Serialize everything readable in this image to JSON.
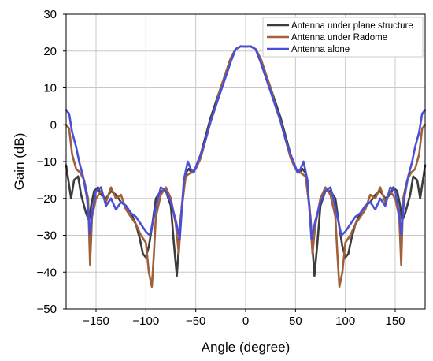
{
  "chart_data": {
    "type": "line",
    "title": "",
    "xlabel": "Angle (degree)",
    "ylabel": "Gain (dB)",
    "xlim": [
      -180,
      180
    ],
    "ylim": [
      -50,
      30
    ],
    "xticks": [
      -150,
      -100,
      -50,
      0,
      50,
      100,
      150
    ],
    "yticks": [
      30,
      20,
      10,
      0,
      -10,
      -20,
      -30,
      -40,
      -50
    ],
    "grid": true,
    "legend_position": "top-right",
    "series": [
      {
        "name": "Antenna under plane structure",
        "color": "#3c3c3c",
        "x": [
          -180,
          -175,
          -172,
          -168,
          -165,
          -160,
          -157,
          -155,
          -152,
          -148,
          -145,
          -140,
          -135,
          -130,
          -125,
          -120,
          -115,
          -110,
          -106,
          -103,
          -100,
          -97,
          -94,
          -90,
          -85,
          -80,
          -75,
          -72,
          -69,
          -65,
          -60,
          -57,
          -54,
          -50,
          -45,
          -40,
          -35,
          -30,
          -25,
          -20,
          -15,
          -10,
          -5,
          0,
          5,
          10,
          15,
          20,
          25,
          30,
          35,
          40,
          45,
          50,
          54,
          57,
          60,
          65,
          69,
          72,
          75,
          80,
          85,
          90,
          94,
          97,
          100,
          103,
          106,
          110,
          115,
          120,
          125,
          130,
          135,
          140,
          145,
          148,
          152,
          155,
          157,
          160,
          165,
          168,
          172,
          175,
          180
        ],
        "y": [
          -11,
          -20,
          -15,
          -14,
          -19,
          -24,
          -26,
          -22,
          -18,
          -17,
          -19,
          -20,
          -18,
          -19,
          -21,
          -22,
          -24,
          -27,
          -31,
          -35,
          -36,
          -33,
          -28,
          -20,
          -18,
          -18,
          -22,
          -32,
          -41,
          -25,
          -13,
          -12,
          -13,
          -12,
          -8,
          -3,
          2,
          6,
          10,
          14,
          18,
          20.5,
          21.3,
          21.2,
          21.3,
          20.5,
          18,
          14,
          10,
          6,
          2,
          -3,
          -8,
          -12,
          -13,
          -12,
          -13,
          -25,
          -41,
          -32,
          -22,
          -18,
          -18,
          -20,
          -28,
          -33,
          -36,
          -35,
          -31,
          -27,
          -24,
          -22,
          -21,
          -19,
          -18,
          -20,
          -19,
          -17,
          -18,
          -22,
          -26,
          -24,
          -19,
          -14,
          -15,
          -20,
          -11
        ]
      },
      {
        "name": "Antenna under Radome",
        "color": "#a0603a",
        "x": [
          -180,
          -177,
          -174,
          -170,
          -166,
          -162,
          -158,
          -156,
          -154,
          -150,
          -145,
          -140,
          -135,
          -130,
          -125,
          -120,
          -115,
          -110,
          -105,
          -100,
          -97,
          -94,
          -92,
          -90,
          -85,
          -80,
          -75,
          -70,
          -67,
          -64,
          -60,
          -55,
          -50,
          -45,
          -40,
          -35,
          -30,
          -25,
          -20,
          -15,
          -10,
          -5,
          0,
          5,
          10,
          15,
          20,
          25,
          30,
          35,
          40,
          45,
          50,
          55,
          60,
          64,
          67,
          70,
          75,
          80,
          85,
          90,
          92,
          94,
          97,
          100,
          105,
          110,
          115,
          120,
          125,
          130,
          135,
          140,
          145,
          150,
          154,
          156,
          158,
          162,
          166,
          170,
          174,
          177,
          180
        ],
        "y": [
          0,
          -1,
          -8,
          -12,
          -13,
          -15,
          -20,
          -38,
          -25,
          -20,
          -18,
          -21,
          -17,
          -20,
          -19,
          -23,
          -25,
          -27,
          -30,
          -32,
          -40,
          -44,
          -35,
          -25,
          -19,
          -17,
          -20,
          -27,
          -35,
          -22,
          -14,
          -13,
          -12,
          -9,
          -4,
          1,
          5,
          10,
          14,
          18,
          20.5,
          21.3,
          21.2,
          21.3,
          20.5,
          18,
          14,
          10,
          5,
          1,
          -4,
          -9,
          -12,
          -13,
          -14,
          -22,
          -35,
          -27,
          -20,
          -17,
          -19,
          -25,
          -35,
          -44,
          -40,
          -32,
          -30,
          -27,
          -25,
          -23,
          -19,
          -20,
          -17,
          -21,
          -18,
          -20,
          -25,
          -38,
          -20,
          -15,
          -13,
          -12,
          -8,
          -1,
          0
        ]
      },
      {
        "name": "Antenna alone",
        "color": "#4a4fd8",
        "x": [
          -180,
          -177,
          -174,
          -170,
          -167,
          -163,
          -159,
          -156,
          -154,
          -150,
          -145,
          -140,
          -135,
          -130,
          -125,
          -120,
          -115,
          -110,
          -105,
          -100,
          -96,
          -92,
          -88,
          -85,
          -80,
          -75,
          -70,
          -66,
          -62,
          -58,
          -55,
          -52,
          -48,
          -45,
          -40,
          -35,
          -30,
          -25,
          -20,
          -15,
          -10,
          -5,
          0,
          5,
          10,
          15,
          20,
          25,
          30,
          35,
          40,
          45,
          48,
          52,
          55,
          58,
          62,
          66,
          70,
          75,
          80,
          85,
          88,
          92,
          96,
          100,
          105,
          110,
          115,
          120,
          125,
          130,
          135,
          140,
          145,
          150,
          154,
          156,
          159,
          163,
          167,
          170,
          174,
          177,
          180
        ],
        "y": [
          4,
          3,
          -2,
          -6,
          -10,
          -14,
          -20,
          -30,
          -24,
          -18,
          -17,
          -22,
          -20,
          -23,
          -21,
          -22,
          -24,
          -25,
          -27,
          -29,
          -30,
          -25,
          -20,
          -17,
          -18,
          -21,
          -26,
          -31,
          -15,
          -10,
          -12,
          -13,
          -10,
          -8,
          -4,
          1,
          5,
          9,
          13,
          17,
          20.5,
          21.3,
          21.2,
          21.3,
          20.5,
          17,
          13,
          9,
          5,
          1,
          -4,
          -8,
          -10,
          -13,
          -12,
          -10,
          -15,
          -31,
          -26,
          -21,
          -18,
          -17,
          -20,
          -25,
          -30,
          -29,
          -27,
          -25,
          -24,
          -22,
          -21,
          -23,
          -20,
          -22,
          -17,
          -18,
          -24,
          -30,
          -20,
          -14,
          -10,
          -6,
          -2,
          3,
          4
        ]
      }
    ]
  }
}
